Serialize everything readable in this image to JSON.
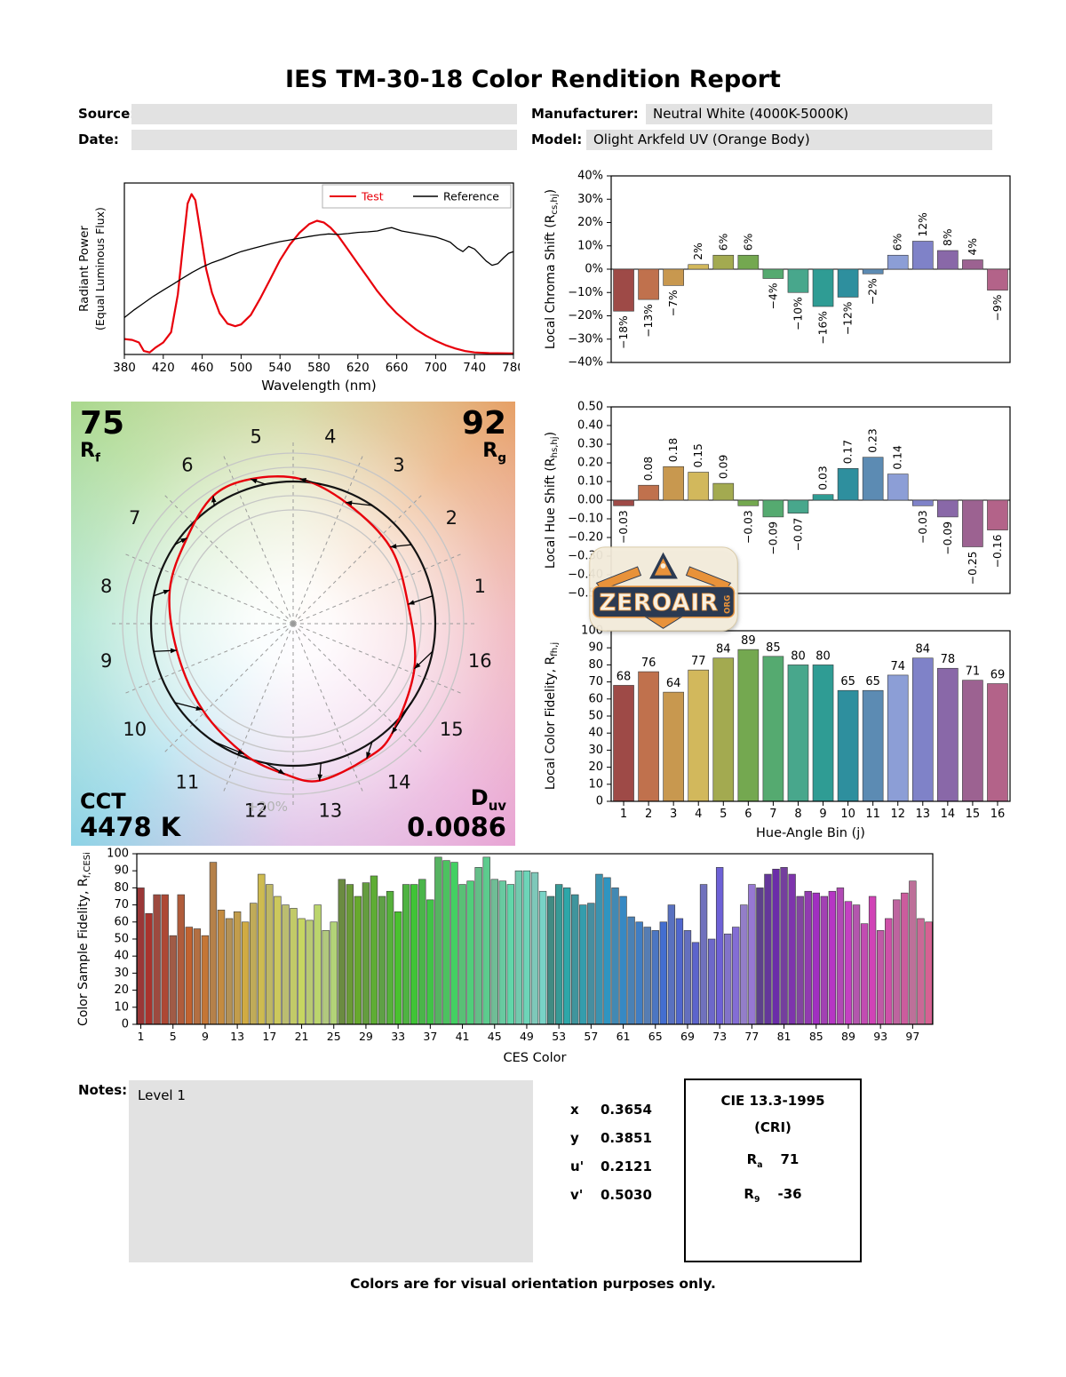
{
  "report": {
    "title": "IES TM-30-18 Color Rendition Report",
    "source_label": "Source:",
    "source_value": "",
    "date_label": "Date:",
    "date_value": "",
    "manufacturer_label": "Manufacturer:",
    "manufacturer_value": "Neutral White (4000K-5000K)",
    "model_label": "Model:",
    "model_value": "Olight Arkfeld UV (Orange Body)"
  },
  "notes": {
    "label": "Notes:",
    "value": "Level 1"
  },
  "footer": "Colors are for visual orientation purposes only.",
  "watermark": {
    "text": "ZEROAIR",
    "suffix": "ORG"
  },
  "hue_bin_colors": [
    "#9e4a47",
    "#c0714d",
    "#c8984f",
    "#d2b85c",
    "#a3aa50",
    "#74a850",
    "#55aa70",
    "#48a78c",
    "#2f9c94",
    "#2e8f9e",
    "#5c8bb3",
    "#8c9ed6",
    "#7f82c8",
    "#8968a8",
    "#9c6291",
    "#b36389"
  ],
  "cvg": {
    "rf_value": "75",
    "rf_main": "R",
    "rf_sub": "f",
    "rg_value": "92",
    "rg_main": "R",
    "rg_sub": "g",
    "cct_label": "CCT",
    "cct_value": "4478 K",
    "duv_main": "D",
    "duv_sub": "uv",
    "duv_value": "0.0086",
    "ring_label": "+20%",
    "bin_labels": [
      "1",
      "2",
      "3",
      "4",
      "5",
      "6",
      "7",
      "8",
      "9",
      "10",
      "11",
      "12",
      "13",
      "14",
      "15",
      "16"
    ],
    "test_color": "#e8000b",
    "reference_color": "#141414"
  },
  "chromaticity": {
    "rows": [
      {
        "label": "x",
        "value": "0.3654"
      },
      {
        "label": "y",
        "value": "0.3851"
      },
      {
        "label": "u'",
        "value": "0.2121"
      },
      {
        "label": "v'",
        "value": "0.5030"
      }
    ]
  },
  "cri": {
    "title": "CIE 13.3-1995",
    "subtitle": "(CRI)",
    "ra_main": "R",
    "ra_sub": "a",
    "ra_value": "71",
    "r9_main": "R",
    "r9_sub": "9",
    "r9_value": "-36"
  },
  "chart_data": [
    {
      "id": "spd",
      "type": "line",
      "xlabel": "Wavelength (nm)",
      "ylabel_lines": [
        "Radiant Power",
        "(Equal Luminous Flux)"
      ],
      "xlim": [
        380,
        780
      ],
      "ylim": [
        0,
        1
      ],
      "x_ticks": [
        380,
        420,
        460,
        500,
        540,
        580,
        620,
        660,
        700,
        740,
        780
      ],
      "legend": [
        {
          "label": "Test",
          "color": "#e8000b"
        },
        {
          "label": "Reference",
          "color": "#000000"
        }
      ],
      "series": [
        {
          "name": "Test",
          "color": "#e8000b",
          "points": [
            [
              380,
              0.09
            ],
            [
              388,
              0.085
            ],
            [
              395,
              0.07
            ],
            [
              400,
              0.02
            ],
            [
              406,
              0.012
            ],
            [
              412,
              0.04
            ],
            [
              420,
              0.07
            ],
            [
              428,
              0.13
            ],
            [
              435,
              0.35
            ],
            [
              440,
              0.62
            ],
            [
              445,
              0.88
            ],
            [
              449,
              0.935
            ],
            [
              453,
              0.9
            ],
            [
              458,
              0.72
            ],
            [
              464,
              0.5
            ],
            [
              470,
              0.36
            ],
            [
              478,
              0.24
            ],
            [
              486,
              0.18
            ],
            [
              494,
              0.165
            ],
            [
              500,
              0.175
            ],
            [
              510,
              0.23
            ],
            [
              520,
              0.33
            ],
            [
              530,
              0.44
            ],
            [
              540,
              0.55
            ],
            [
              550,
              0.64
            ],
            [
              560,
              0.71
            ],
            [
              570,
              0.76
            ],
            [
              578,
              0.78
            ],
            [
              585,
              0.77
            ],
            [
              592,
              0.74
            ],
            [
              600,
              0.69
            ],
            [
              610,
              0.61
            ],
            [
              620,
              0.53
            ],
            [
              630,
              0.45
            ],
            [
              640,
              0.37
            ],
            [
              650,
              0.3
            ],
            [
              660,
              0.24
            ],
            [
              670,
              0.19
            ],
            [
              680,
              0.145
            ],
            [
              690,
              0.11
            ],
            [
              700,
              0.08
            ],
            [
              710,
              0.055
            ],
            [
              720,
              0.035
            ],
            [
              730,
              0.02
            ],
            [
              740,
              0.012
            ],
            [
              755,
              0.008
            ],
            [
              780,
              0.006
            ]
          ]
        },
        {
          "name": "Reference",
          "color": "#000000",
          "points": [
            [
              380,
              0.215
            ],
            [
              390,
              0.26
            ],
            [
              400,
              0.3
            ],
            [
              410,
              0.34
            ],
            [
              420,
              0.375
            ],
            [
              430,
              0.41
            ],
            [
              440,
              0.445
            ],
            [
              450,
              0.48
            ],
            [
              460,
              0.51
            ],
            [
              470,
              0.535
            ],
            [
              480,
              0.555
            ],
            [
              490,
              0.578
            ],
            [
              500,
              0.6
            ],
            [
              510,
              0.615
            ],
            [
              520,
              0.63
            ],
            [
              530,
              0.645
            ],
            [
              540,
              0.658
            ],
            [
              550,
              0.668
            ],
            [
              560,
              0.678
            ],
            [
              570,
              0.688
            ],
            [
              580,
              0.697
            ],
            [
              590,
              0.703
            ],
            [
              600,
              0.7
            ],
            [
              610,
              0.705
            ],
            [
              620,
              0.712
            ],
            [
              630,
              0.715
            ],
            [
              640,
              0.72
            ],
            [
              650,
              0.735
            ],
            [
              655,
              0.74
            ],
            [
              660,
              0.73
            ],
            [
              665,
              0.72
            ],
            [
              670,
              0.715
            ],
            [
              680,
              0.705
            ],
            [
              690,
              0.695
            ],
            [
              700,
              0.685
            ],
            [
              708,
              0.67
            ],
            [
              715,
              0.655
            ],
            [
              722,
              0.62
            ],
            [
              728,
              0.6
            ],
            [
              734,
              0.63
            ],
            [
              740,
              0.615
            ],
            [
              746,
              0.58
            ],
            [
              752,
              0.545
            ],
            [
              758,
              0.52
            ],
            [
              764,
              0.53
            ],
            [
              770,
              0.565
            ],
            [
              775,
              0.59
            ],
            [
              780,
              0.6
            ]
          ]
        }
      ]
    },
    {
      "id": "chroma",
      "type": "bar",
      "ylabel": {
        "pre": "Local Chroma Shift (R",
        "sub": "cs,hj",
        "post": ")"
      },
      "ylim": [
        -40,
        40
      ],
      "y_tick_step": 10,
      "y_suffix": "%",
      "values": [
        -18,
        -13,
        -7,
        2,
        6,
        6,
        -4,
        -10,
        -16,
        -12,
        -2,
        6,
        12,
        8,
        4,
        -9
      ],
      "labels": [
        "-18%",
        "-13%",
        "-7%",
        "2%",
        "6%",
        "6%",
        "-4%",
        "-10%",
        "-16%",
        "-12%",
        "-2%",
        "6%",
        "12%",
        "8%",
        "4%",
        "-9%"
      ]
    },
    {
      "id": "hue",
      "type": "bar",
      "ylabel": {
        "pre": "Local Hue Shift (R",
        "sub": "hs,hj",
        "post": ")"
      },
      "ylim": [
        -0.5,
        0.5
      ],
      "y_tick_step": 0.1,
      "values": [
        -0.03,
        0.08,
        0.18,
        0.15,
        0.09,
        -0.03,
        -0.09,
        -0.07,
        0.03,
        0.17,
        0.23,
        0.14,
        -0.03,
        -0.09,
        -0.25,
        -0.16
      ],
      "labels": [
        "-0.03",
        "0.08",
        "0.18",
        "0.15",
        "0.09",
        "-0.03",
        "-0.09",
        "-0.07",
        "0.03",
        "0.17",
        "0.23",
        "0.14",
        "-0.03",
        "-0.09",
        "-0.25",
        "-0.16"
      ]
    },
    {
      "id": "fidelity",
      "type": "bar",
      "ylabel": {
        "pre": "Local Color Fidelity, R",
        "sub": "fh,j",
        "post": ""
      },
      "xlabel": "Hue-Angle Bin (j)",
      "ylim": [
        0,
        100
      ],
      "y_tick_step": 10,
      "x_ticks": [
        1,
        2,
        3,
        4,
        5,
        6,
        7,
        8,
        9,
        10,
        11,
        12,
        13,
        14,
        15,
        16
      ],
      "values": [
        68,
        76,
        64,
        77,
        84,
        89,
        85,
        80,
        80,
        65,
        65,
        74,
        84,
        78,
        71,
        69
      ]
    },
    {
      "id": "ces",
      "type": "bar",
      "ylabel": {
        "pre": "Color Sample Fidelity, R",
        "sub": "f,CESi",
        "post": ""
      },
      "xlabel": "CES Color",
      "ylim": [
        0,
        100
      ],
      "y_tick_step": 10,
      "x_ticks": [
        1,
        5,
        9,
        13,
        17,
        21,
        25,
        29,
        33,
        37,
        41,
        45,
        49,
        53,
        57,
        61,
        65,
        69,
        73,
        77,
        81,
        85,
        89,
        93,
        97
      ],
      "color_ramp": {
        "type": "hsl-ramp",
        "start_hue": 0,
        "end_hue": 335
      },
      "values": [
        80,
        65,
        76,
        76,
        52,
        76,
        57,
        56,
        52,
        95,
        67,
        62,
        66,
        60,
        71,
        88,
        82,
        75,
        70,
        68,
        62,
        61,
        70,
        55,
        60,
        85,
        82,
        75,
        83,
        87,
        75,
        78,
        66,
        82,
        82,
        85,
        73,
        98,
        96,
        95,
        82,
        84,
        92,
        98,
        85,
        84,
        82,
        90,
        90,
        89,
        78,
        75,
        82,
        80,
        76,
        70,
        71,
        88,
        86,
        80,
        75,
        63,
        60,
        57,
        55,
        60,
        70,
        62,
        55,
        48,
        82,
        50,
        92,
        53,
        57,
        70,
        82,
        80,
        88,
        91,
        92,
        88,
        75,
        78,
        77,
        75,
        78,
        80,
        72,
        70,
        59,
        75,
        55,
        62,
        73,
        77,
        84,
        62,
        60
      ]
    }
  ]
}
